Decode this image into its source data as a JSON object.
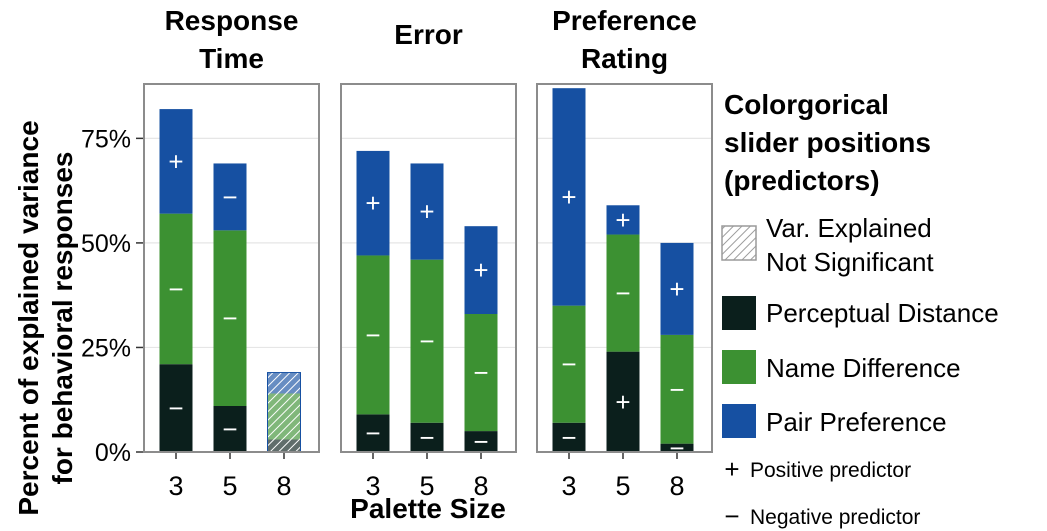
{
  "chart_data": {
    "type": "bar",
    "stacked": true,
    "ylabel_line1": "Percent of explained variance",
    "ylabel_line2": "for behavioral responses",
    "xlabel": "Palette Size",
    "ylim": [
      0,
      0.88
    ],
    "y_ticks": [
      {
        "value": 0,
        "label": "0%"
      },
      {
        "value": 0.25,
        "label": "25%"
      },
      {
        "value": 0.5,
        "label": "50%"
      },
      {
        "value": 0.75,
        "label": "75%"
      }
    ],
    "categories": [
      "3",
      "5",
      "8"
    ],
    "series_names": [
      "Perceptual Distance",
      "Name Difference",
      "Pair Preference"
    ],
    "colors": {
      "Perceptual Distance": "#0b1f1c",
      "Name Difference": "#3c9132",
      "Pair Preference": "#1650a2",
      "panel_border": "#8c8c8c",
      "grid": "#e6e6e6"
    },
    "panels": [
      {
        "title_lines": [
          "Response",
          "Time"
        ],
        "bars": [
          {
            "category": "3",
            "significant": true,
            "segments": [
              {
                "series": "Perceptual Distance",
                "value": 0.21,
                "sign": "−"
              },
              {
                "series": "Name Difference",
                "value": 0.36,
                "sign": "−"
              },
              {
                "series": "Pair Preference",
                "value": 0.25,
                "sign": "+"
              }
            ]
          },
          {
            "category": "5",
            "significant": true,
            "segments": [
              {
                "series": "Perceptual Distance",
                "value": 0.11,
                "sign": "−"
              },
              {
                "series": "Name Difference",
                "value": 0.42,
                "sign": "−"
              },
              {
                "series": "Pair Preference",
                "value": 0.16,
                "sign": "−"
              }
            ]
          },
          {
            "category": "8",
            "significant": false,
            "segments": [
              {
                "series": "Perceptual Distance",
                "value": 0.03,
                "sign": ""
              },
              {
                "series": "Name Difference",
                "value": 0.11,
                "sign": ""
              },
              {
                "series": "Pair Preference",
                "value": 0.05,
                "sign": ""
              }
            ]
          }
        ]
      },
      {
        "title_lines": [
          "Error"
        ],
        "bars": [
          {
            "category": "3",
            "significant": true,
            "segments": [
              {
                "series": "Perceptual Distance",
                "value": 0.09,
                "sign": "−"
              },
              {
                "series": "Name Difference",
                "value": 0.38,
                "sign": "−"
              },
              {
                "series": "Pair Preference",
                "value": 0.25,
                "sign": "+"
              }
            ]
          },
          {
            "category": "5",
            "significant": true,
            "segments": [
              {
                "series": "Perceptual Distance",
                "value": 0.07,
                "sign": "−"
              },
              {
                "series": "Name Difference",
                "value": 0.39,
                "sign": "−"
              },
              {
                "series": "Pair Preference",
                "value": 0.23,
                "sign": "+"
              }
            ]
          },
          {
            "category": "8",
            "significant": true,
            "segments": [
              {
                "series": "Perceptual Distance",
                "value": 0.05,
                "sign": "−"
              },
              {
                "series": "Name Difference",
                "value": 0.28,
                "sign": "−"
              },
              {
                "series": "Pair Preference",
                "value": 0.21,
                "sign": "+"
              }
            ]
          }
        ]
      },
      {
        "title_lines": [
          "Preference",
          "Rating"
        ],
        "bars": [
          {
            "category": "3",
            "significant": true,
            "segments": [
              {
                "series": "Perceptual Distance",
                "value": 0.07,
                "sign": "−"
              },
              {
                "series": "Name Difference",
                "value": 0.28,
                "sign": "−"
              },
              {
                "series": "Pair Preference",
                "value": 0.52,
                "sign": "+"
              }
            ]
          },
          {
            "category": "5",
            "significant": true,
            "segments": [
              {
                "series": "Perceptual Distance",
                "value": 0.24,
                "sign": "+"
              },
              {
                "series": "Name Difference",
                "value": 0.28,
                "sign": "−"
              },
              {
                "series": "Pair Preference",
                "value": 0.07,
                "sign": "+"
              }
            ]
          },
          {
            "category": "8",
            "significant": true,
            "segments": [
              {
                "series": "Perceptual Distance",
                "value": 0.02,
                "sign": "−"
              },
              {
                "series": "Name Difference",
                "value": 0.26,
                "sign": "−"
              },
              {
                "series": "Pair Preference",
                "value": 0.22,
                "sign": "+"
              }
            ]
          }
        ]
      }
    ],
    "legend": {
      "title_lines": [
        "Colorgorical",
        "slider positions",
        "(predictors)"
      ],
      "not_significant_lines": [
        "Var. Explained",
        "Not Significant"
      ],
      "items": [
        "Perceptual Distance",
        "Name Difference",
        "Pair Preference"
      ],
      "positive_label": "Positive predictor",
      "negative_label": "Negative predictor",
      "positive_symbol": "+",
      "negative_symbol": "−"
    }
  }
}
